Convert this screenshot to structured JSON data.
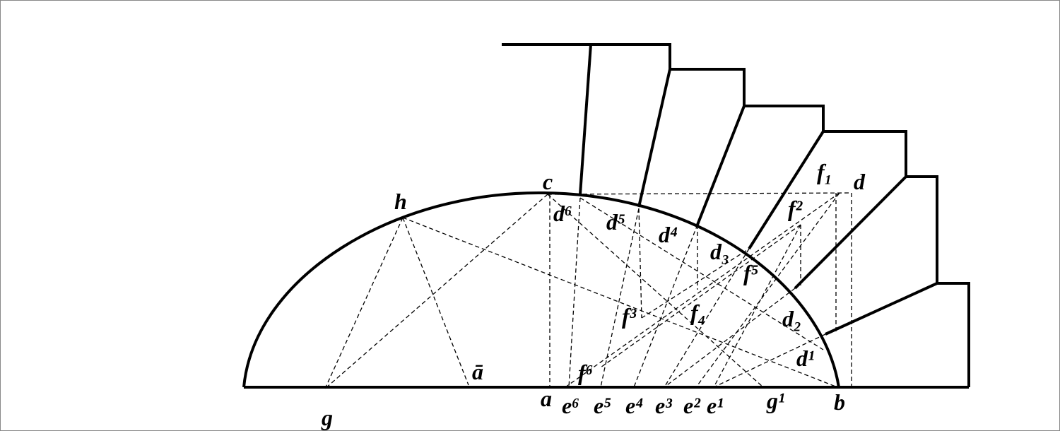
{
  "labels": [
    "c",
    "h",
    "d",
    "f₁",
    "f²",
    "d⁶",
    "d⁵",
    "d⁴",
    "d₃",
    "f⁵",
    "f³",
    "f₄",
    "d₂",
    "d¹",
    "ā",
    "f⁶",
    "a",
    "e⁶",
    "e⁵",
    "e⁴",
    "e³",
    "e²",
    "e¹",
    "g¹",
    "b",
    "g"
  ]
}
